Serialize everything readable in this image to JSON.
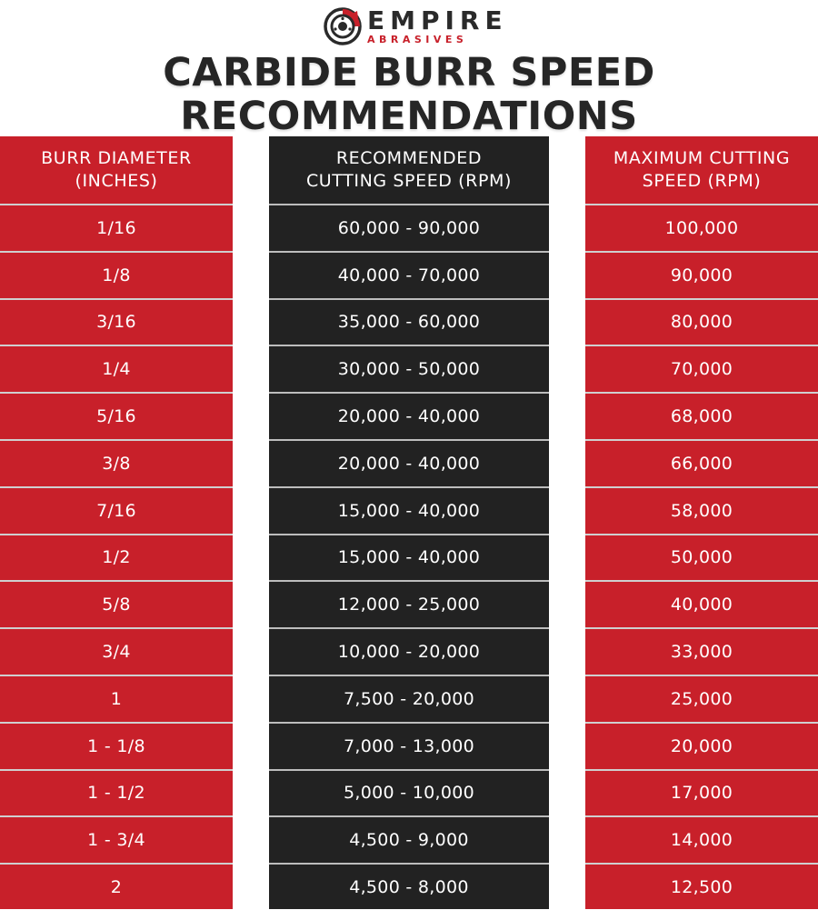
{
  "brand": {
    "name": "EMPIRE",
    "subname": "ABRASIVES",
    "logo_icon": "brake-disc-icon",
    "colors": {
      "red": "#c8202a",
      "dark": "#222222",
      "text": "#262626"
    }
  },
  "title": {
    "line1": "CARBIDE BURR SPEED",
    "line2": "RECOMMENDATIONS"
  },
  "table": {
    "headers": {
      "diameter": [
        "BURR DIAMETER",
        "(INCHES)"
      ],
      "recommended": [
        "RECOMMENDED",
        "CUTTING SPEED (RPM)"
      ],
      "maximum": [
        "MAXIMUM CUTTING",
        "SPEED (RPM)"
      ]
    },
    "rows": [
      {
        "diameter": "1/16",
        "recommended": "60,000 - 90,000",
        "maximum": "100,000"
      },
      {
        "diameter": "1/8",
        "recommended": "40,000 - 70,000",
        "maximum": "90,000"
      },
      {
        "diameter": "3/16",
        "recommended": "35,000 - 60,000",
        "maximum": "80,000"
      },
      {
        "diameter": "1/4",
        "recommended": "30,000 - 50,000",
        "maximum": "70,000"
      },
      {
        "diameter": "5/16",
        "recommended": "20,000 - 40,000",
        "maximum": "68,000"
      },
      {
        "diameter": "3/8",
        "recommended": "20,000 - 40,000",
        "maximum": "66,000"
      },
      {
        "diameter": "7/16",
        "recommended": "15,000 - 40,000",
        "maximum": "58,000"
      },
      {
        "diameter": "1/2",
        "recommended": "15,000 - 40,000",
        "maximum": "50,000"
      },
      {
        "diameter": "5/8",
        "recommended": "12,000 - 25,000",
        "maximum": "40,000"
      },
      {
        "diameter": "3/4",
        "recommended": "10,000 - 20,000",
        "maximum": "33,000"
      },
      {
        "diameter": "1",
        "recommended": "7,500 - 20,000",
        "maximum": "25,000"
      },
      {
        "diameter": "1 - 1/8",
        "recommended": "7,000 - 13,000",
        "maximum": "20,000"
      },
      {
        "diameter": "1 - 1/2",
        "recommended": "5,000 - 10,000",
        "maximum": "17,000"
      },
      {
        "diameter": "1 - 3/4",
        "recommended": "4,500 - 9,000",
        "maximum": "14,000"
      },
      {
        "diameter": "2",
        "recommended": "4,500 - 8,000",
        "maximum": "12,500"
      }
    ]
  }
}
